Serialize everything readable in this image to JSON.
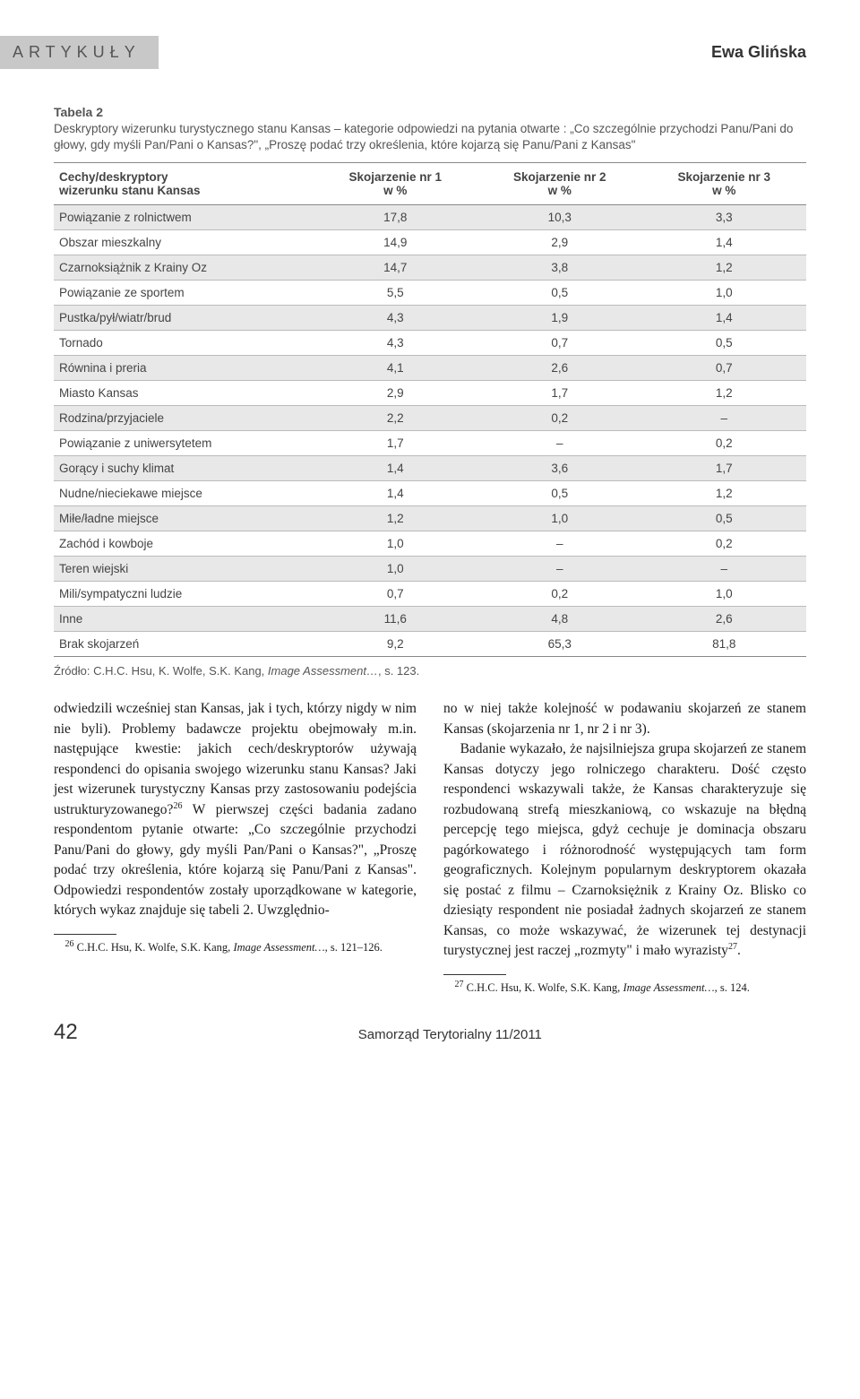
{
  "header": {
    "section_label": "ARTYKUŁY",
    "author": "Ewa Glińska"
  },
  "table": {
    "title": "Tabela 2",
    "description": "Deskryptory wizerunku turystycznego stanu Kansas – kategorie odpowiedzi na pytania otwarte : „Co szczególnie przychodzi Panu/Pani do głowy, gdy myśli Pan/Pani o Kansas?\", „Proszę podać trzy określenia, które kojarzą się Panu/Pani z Kansas\"",
    "columns": [
      {
        "line1": "Cechy/deskryptory",
        "line2": "wizerunku stanu Kansas"
      },
      {
        "line1": "Skojarzenie nr 1",
        "line2": "w %"
      },
      {
        "line1": "Skojarzenie nr 2",
        "line2": "w %"
      },
      {
        "line1": "Skojarzenie nr 3",
        "line2": "w %"
      }
    ],
    "rows": [
      {
        "shaded": true,
        "cells": [
          "Powiązanie z rolnictwem",
          "17,8",
          "10,3",
          "3,3"
        ]
      },
      {
        "shaded": false,
        "cells": [
          "Obszar mieszkalny",
          "14,9",
          "2,9",
          "1,4"
        ]
      },
      {
        "shaded": true,
        "cells": [
          "Czarnoksiążnik z Krainy Oz",
          "14,7",
          "3,8",
          "1,2"
        ]
      },
      {
        "shaded": false,
        "cells": [
          "Powiązanie ze sportem",
          "5,5",
          "0,5",
          "1,0"
        ]
      },
      {
        "shaded": true,
        "cells": [
          "Pustka/pył/wiatr/brud",
          "4,3",
          "1,9",
          "1,4"
        ]
      },
      {
        "shaded": false,
        "cells": [
          "Tornado",
          "4,3",
          "0,7",
          "0,5"
        ]
      },
      {
        "shaded": true,
        "cells": [
          "Równina i preria",
          "4,1",
          "2,6",
          "0,7"
        ]
      },
      {
        "shaded": false,
        "cells": [
          "Miasto Kansas",
          "2,9",
          "1,7",
          "1,2"
        ]
      },
      {
        "shaded": true,
        "cells": [
          "Rodzina/przyjaciele",
          "2,2",
          "0,2",
          "–"
        ]
      },
      {
        "shaded": false,
        "cells": [
          "Powiązanie z uniwersytetem",
          "1,7",
          "–",
          "0,2"
        ]
      },
      {
        "shaded": true,
        "cells": [
          "Gorący i suchy klimat",
          "1,4",
          "3,6",
          "1,7"
        ]
      },
      {
        "shaded": false,
        "cells": [
          "Nudne/nieciekawe miejsce",
          "1,4",
          "0,5",
          "1,2"
        ]
      },
      {
        "shaded": true,
        "cells": [
          "Miłe/ładne miejsce",
          "1,2",
          "1,0",
          "0,5"
        ]
      },
      {
        "shaded": false,
        "cells": [
          "Zachód i kowboje",
          "1,0",
          "–",
          "0,2"
        ]
      },
      {
        "shaded": true,
        "cells": [
          "Teren wiejski",
          "1,0",
          "–",
          "–"
        ]
      },
      {
        "shaded": false,
        "cells": [
          "Mili/sympatyczni ludzie",
          "0,7",
          "0,2",
          "1,0"
        ]
      },
      {
        "shaded": true,
        "cells": [
          "Inne",
          "11,6",
          "4,8",
          "2,6"
        ]
      },
      {
        "shaded": false,
        "cells": [
          "Brak skojarzeń",
          "9,2",
          "65,3",
          "81,8"
        ]
      }
    ],
    "source_prefix": "Źródło: C.H.C. Hsu, K. Wolfe, S.K. Kang, ",
    "source_italic": "Image Assessment…",
    "source_suffix": ", s. 123."
  },
  "body": {
    "left": {
      "p1": "odwiedzili wcześniej stan Kansas, jak i tych, którzy nigdy w nim nie byli). Problemy badawcze projektu obejmowały m.in. następujące kwestie: jakich cech/deskryptorów używają respondenci do opisania swojego wizerunku stanu Kansas? Jaki jest wizerunek turystyczny Kansas przy zastosowaniu podejścia ustrukturyzowanego?",
      "p1_sup": "26",
      "p1b": " W pierwszej części badania zadano respondentom pytanie otwarte: „Co szczególnie przychodzi Panu/Pani do głowy, gdy myśli Pan/Pani o Kansas?\", „Proszę podać trzy określenia, które kojarzą się Panu/Pani z Kansas\". Odpowiedzi respondentów zostały uporządkowane w kategorie, których wykaz znajduje się tabeli 2. Uwzględnio-",
      "footnote_num": "26",
      "footnote_text": " C.H.C. Hsu, K. Wolfe, S.K. Kang, ",
      "footnote_italic": "Image Assessment…",
      "footnote_suffix": ", s. 121–126."
    },
    "right": {
      "p1": "no w niej także kolejność w podawaniu skojarzeń ze stanem Kansas (skojarzenia nr 1, nr 2 i nr 3).",
      "p2a": "Badanie wykazało, że najsilniejsza grupa skojarzeń ze stanem Kansas dotyczy jego rolniczego charakteru. Dość często respondenci wskazywali także, że Kansas charakteryzuje się rozbudowaną strefą mieszkaniową, co wskazuje na błędną percepcję tego miejsca, gdyż cechuje je dominacja obszaru pagórkowatego i różnorodność występujących tam form geograficznych. Kolejnym popularnym deskryptorem okazała się postać z filmu – Czarnoksiężnik z Krainy Oz. Blisko co dziesiąty respondent nie posiadał żadnych skojarzeń ze stanem Kansas, co może wskazywać, że wizerunek tej destynacji turystycznej jest raczej „rozmyty\" i mało wyrazisty",
      "p2_sup": "27",
      "p2b": ".",
      "footnote_num": "27",
      "footnote_text": " C.H.C. Hsu, K. Wolfe, S.K. Kang, ",
      "footnote_italic": "Image Assessment…",
      "footnote_suffix": ", s. 124."
    }
  },
  "footer": {
    "page_num": "42",
    "publication": "Samorząd Terytorialny 11/2011"
  }
}
